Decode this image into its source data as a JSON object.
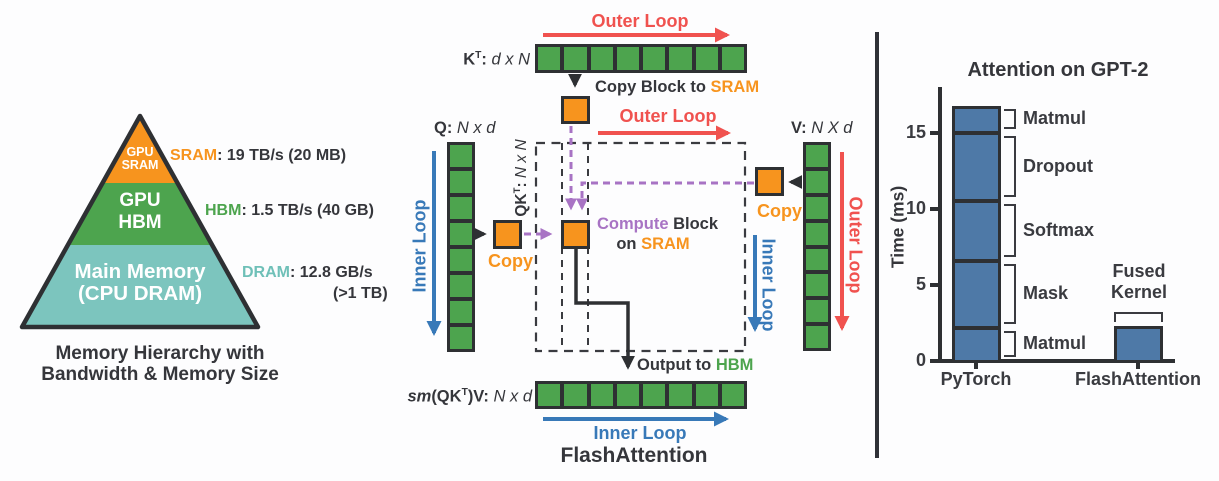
{
  "pyramid": {
    "levels": [
      {
        "line1": "GPU",
        "line2": "SRAM"
      },
      {
        "line1": "GPU",
        "line2": "HBM"
      },
      {
        "line1": "Main Memory",
        "line2": "(CPU DRAM)"
      }
    ],
    "annotations": [
      {
        "acronym": "SRAM",
        "detail": ": 19 TB/s (20 MB)"
      },
      {
        "acronym": "HBM",
        "detail": ": 1.5 TB/s (40 GB)"
      },
      {
        "acronym": "DRAM",
        "detail": ": 12.8 GB/s",
        "detail2": "(>1 TB)"
      }
    ],
    "caption_line1": "Memory Hierarchy with",
    "caption_line2": "Bandwidth & Memory Size"
  },
  "diagram": {
    "outer_loop": "Outer Loop",
    "inner_loop": "Inner Loop",
    "copy": "Copy",
    "k_pre": "K",
    "k_sup": "T",
    "k_post": ": ",
    "k_dims": "d x N",
    "q_pre": "Q: ",
    "q_dims": "N x d",
    "v_pre": "V: ",
    "v_dims": "N X d",
    "qkt_pre": "QK",
    "qkt_sup": "T",
    "qkt_post": ": ",
    "qkt_dims": "N x N",
    "copy_block_prefix": "Copy Block to ",
    "sram": "SRAM",
    "compute_word": "Compute",
    "compute_rest": " Block",
    "on_prefix": "on ",
    "output_prefix": "Output to ",
    "hbm": "HBM",
    "sm_pre": "sm",
    "sm_mid": "(QK",
    "sm_sup": "T",
    "sm_post": ")V: ",
    "sm_dims": "N x d",
    "caption": "FlashAttention",
    "k_cells": 8,
    "q_cells": 8,
    "v_cells": 8,
    "o_cells": 8
  },
  "chart_data": {
    "type": "stacked-bar",
    "title": "Attention on GPT-2",
    "ylabel": "Time (ms)",
    "yticks": [
      0,
      5,
      10,
      15
    ],
    "ylim": [
      0,
      17.5
    ],
    "grid": false,
    "legend": "none",
    "categories": [
      "PyTorch",
      "FlashAttention"
    ],
    "pytorch_segments": [
      {
        "label": "Matmul",
        "value": 2.2
      },
      {
        "label": "Mask",
        "value": 4.4
      },
      {
        "label": "Softmax",
        "value": 3.9
      },
      {
        "label": "Dropout",
        "value": 4.5
      },
      {
        "label": "Matmul",
        "value": 1.8
      }
    ],
    "pytorch_total": 16.8,
    "flashattention_value": 2.3,
    "flashattention_label_lines": [
      "Fused",
      "Kernel"
    ],
    "bar_color": "#4E79A7"
  },
  "colors": {
    "orange": "#F7941E",
    "green": "#4DA44E",
    "teal": "#7CC5BE",
    "steel_blue": "#4E79A7",
    "red": "#F0524F",
    "blue": "#3879B8",
    "purple": "#A873C4",
    "outline_dark": "#2E3033",
    "text_dark": "#35363B"
  }
}
